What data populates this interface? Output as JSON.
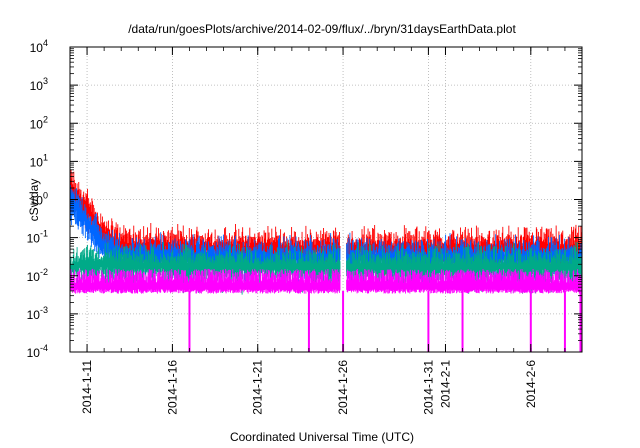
{
  "chart_data": {
    "type": "line",
    "title": "/data/run/goesPlots/archive/2014-02-09/flux/../bryn/31daysEarthData.plot",
    "xlabel": "Coordinated Universal Time (UTC)",
    "ylabel": "cSv/day",
    "y_scale": "log",
    "ylim_exponents": [
      -4,
      4
    ],
    "y_tick_base": "10",
    "y_tick_exponents": [
      "-4",
      "-3",
      "-2",
      "-1",
      "0",
      "1",
      "2",
      "3",
      "4"
    ],
    "xlim": [
      "2014-01-10",
      "2014-02-09"
    ],
    "x_ticks": [
      {
        "date": "2014-01-11",
        "label": "2014-1-11"
      },
      {
        "date": "2014-01-16",
        "label": "2014-1-16"
      },
      {
        "date": "2014-01-21",
        "label": "2014-1-21"
      },
      {
        "date": "2014-01-26",
        "label": "2014-1-26"
      },
      {
        "date": "2014-01-31",
        "label": "2014-1-31"
      },
      {
        "date": "2014-02-01",
        "label": "2014-2-1"
      },
      {
        "date": "2014-02-06",
        "label": "2014-2-6"
      }
    ],
    "grid": true,
    "legend": "none",
    "series": [
      {
        "color": "#ff0000",
        "points": [
          [
            "2014-01-10",
            2.5
          ],
          [
            "2014-01-11",
            0.6
          ],
          [
            "2014-01-12",
            0.15
          ],
          [
            "2014-01-13",
            0.07
          ],
          [
            "2014-01-20",
            0.06
          ],
          [
            "2014-01-30",
            0.06
          ],
          [
            "2014-02-09",
            0.06
          ]
        ]
      },
      {
        "color": "#0066ff",
        "points": [
          [
            "2014-01-10",
            1.2
          ],
          [
            "2014-01-11",
            0.3
          ],
          [
            "2014-01-12",
            0.07
          ],
          [
            "2014-01-13",
            0.04
          ],
          [
            "2014-01-20",
            0.035
          ],
          [
            "2014-01-30",
            0.035
          ],
          [
            "2014-02-09",
            0.035
          ]
        ]
      },
      {
        "color": "#00aa88",
        "points": [
          [
            "2014-01-10",
            0.018
          ],
          [
            "2014-01-11",
            0.025
          ],
          [
            "2014-01-13",
            0.022
          ],
          [
            "2014-01-20",
            0.02
          ],
          [
            "2014-01-30",
            0.02
          ],
          [
            "2014-02-09",
            0.02
          ]
        ]
      },
      {
        "color": "#ff00ff",
        "points": [
          [
            "2014-01-10",
            0.004
          ],
          [
            "2014-01-20",
            0.004
          ],
          [
            "2014-01-30",
            0.004
          ],
          [
            "2014-02-09",
            0.004
          ]
        ]
      }
    ],
    "annotations": [
      {
        "type": "gap",
        "date": "2014-01-26"
      },
      {
        "type": "spike-down",
        "dates": [
          "2014-01-17",
          "2014-01-24",
          "2014-01-26",
          "2014-01-31",
          "2014-02-02",
          "2014-02-06",
          "2014-02-08",
          "2014-02-09"
        ],
        "value": 0.0001
      }
    ]
  }
}
